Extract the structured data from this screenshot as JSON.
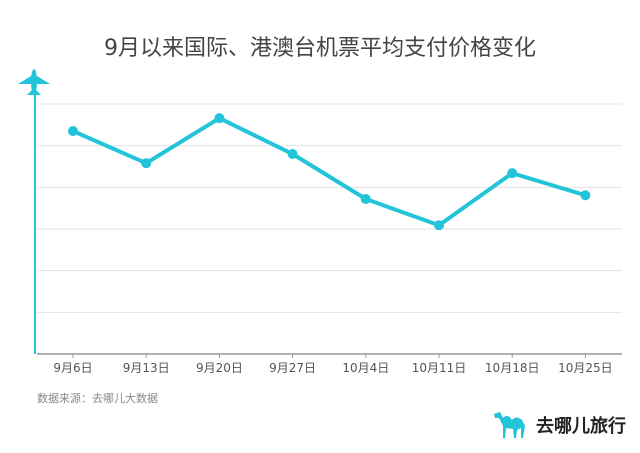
{
  "title": "9月以来国际、港澳台机票平均支付价格变化",
  "source": "数据来源：去哪儿大数据",
  "brand": "去哪儿旅行",
  "colors": {
    "line": "#22C4DA",
    "grid": "#e3e3e3",
    "axis": "#999999"
  },
  "icons": {
    "axis_top": "airplane-icon",
    "logo": "camel-icon"
  },
  "chart_data": {
    "type": "line",
    "title": "9月以来国际、港澳台机票平均支付价格变化",
    "categories": [
      "9月6日",
      "9月13日",
      "9月20日",
      "9月27日",
      "10月4日",
      "10月11日",
      "10月18日",
      "10月25日"
    ],
    "values": [
      5.35,
      4.58,
      5.66,
      4.8,
      3.72,
      3.09,
      4.34,
      3.81
    ],
    "ylim": [
      0,
      6
    ],
    "y_tick_labels_shown": false,
    "grid": true,
    "xlabel": "",
    "ylabel": ""
  }
}
